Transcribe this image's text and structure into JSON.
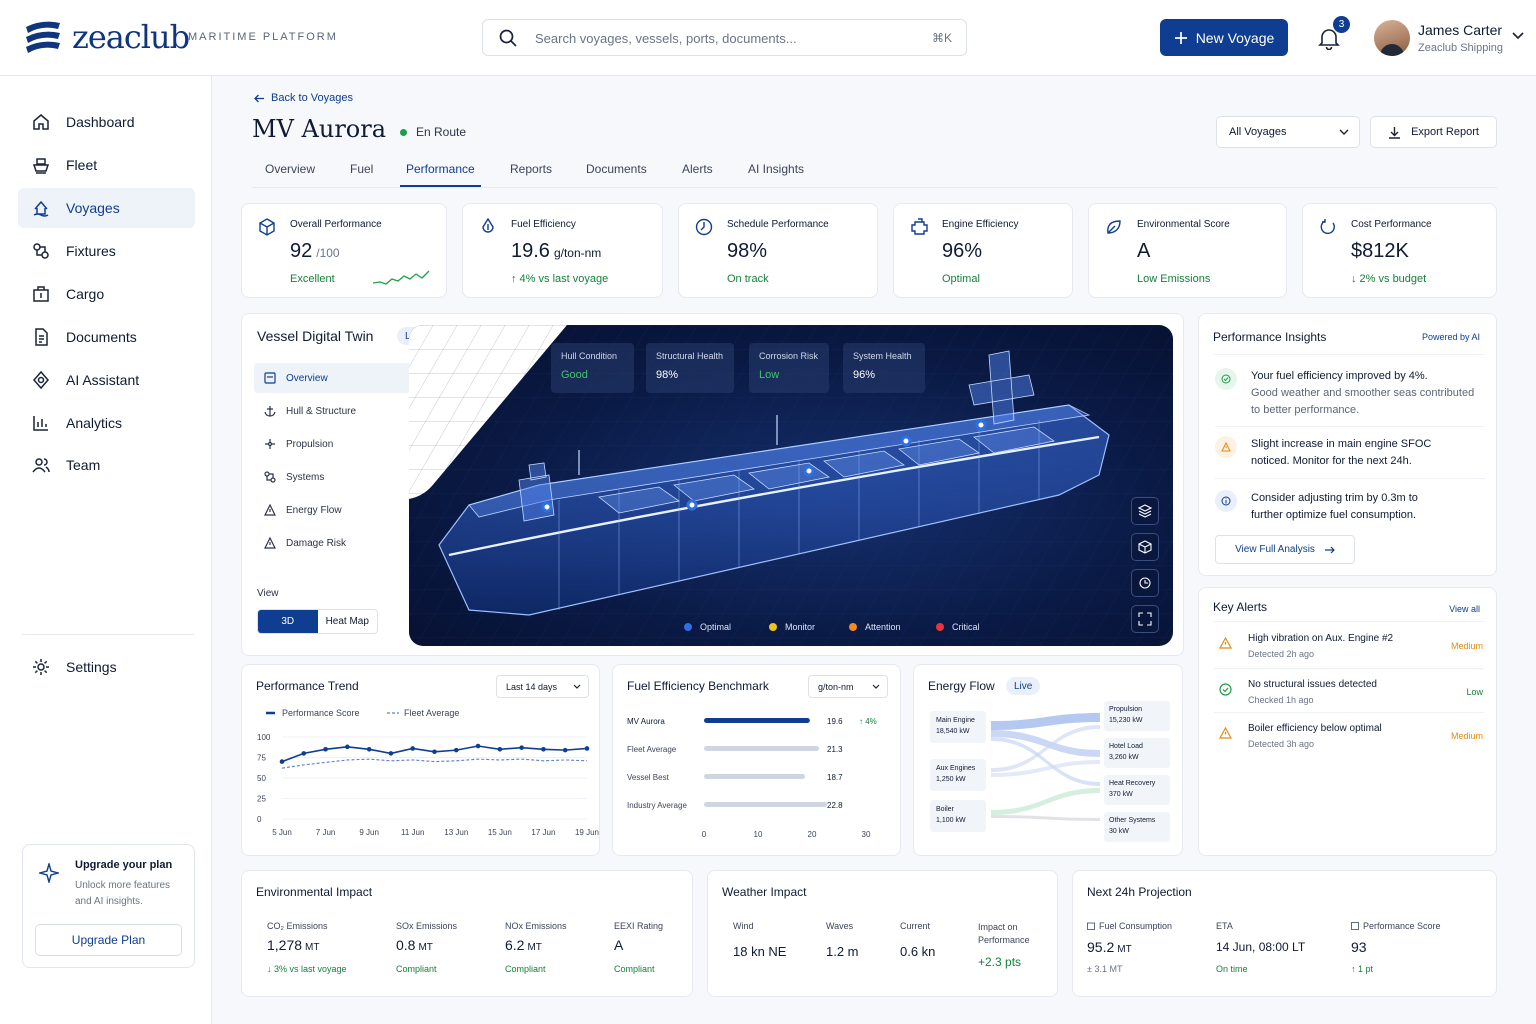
{
  "brand": {
    "name": "zeaclub",
    "tagline": "MARITIME PLATFORM"
  },
  "search": {
    "placeholder": "Search voyages, vessels, ports, documents...",
    "shortcut": "⌘K"
  },
  "header": {
    "new_voyage": "New Voyage",
    "notifications": "3",
    "user_name": "James Carter",
    "user_org": "Zeaclub Shipping"
  },
  "nav": {
    "items": [
      {
        "label": "Dashboard",
        "icon": "dashboard-icon"
      },
      {
        "label": "Fleet",
        "icon": "ship-icon"
      },
      {
        "label": "Voyages",
        "icon": "voyages-icon"
      },
      {
        "label": "Fixtures",
        "icon": "fixtures-icon"
      },
      {
        "label": "Cargo",
        "icon": "cargo-icon"
      },
      {
        "label": "Documents",
        "icon": "document-icon"
      },
      {
        "label": "AI Assistant",
        "icon": "ai-icon"
      },
      {
        "label": "Analytics",
        "icon": "analytics-icon"
      },
      {
        "label": "Team",
        "icon": "team-icon"
      }
    ],
    "settings": "Settings"
  },
  "upgrade": {
    "title": "Upgrade your plan",
    "desc": "Unlock more features and AI insights.",
    "button": "Upgrade Plan"
  },
  "page": {
    "back": "Back to Voyages",
    "title": "MV Aurora",
    "status": "En Route",
    "voyage_select": "All Voyages",
    "export": "Export Report"
  },
  "tabs": [
    "Overview",
    "Fuel",
    "Performance",
    "Reports",
    "Documents",
    "Alerts",
    "AI Insights"
  ],
  "kpis": [
    {
      "title": "Overall Performance",
      "value": "92",
      "unit": "/100",
      "sub": "Excellent"
    },
    {
      "title": "Fuel Efficiency",
      "value": "19.6",
      "unit": "g/ton-nm",
      "sub": "↑  4% vs last voyage"
    },
    {
      "title": "Schedule Performance",
      "value": "98%",
      "unit": "",
      "sub": "On track"
    },
    {
      "title": "Engine Efficiency",
      "value": "96%",
      "unit": "",
      "sub": "Optimal"
    },
    {
      "title": "Environmental Score",
      "value": "A",
      "unit": "",
      "sub": "Low Emissions"
    },
    {
      "title": "Cost Performance",
      "value": "$812K",
      "unit": "",
      "sub": "↓  2% vs budget"
    }
  ],
  "twin": {
    "title": "Vessel Digital Twin",
    "live": "Live",
    "menu": [
      "Overview",
      "Hull & Structure",
      "Propulsion",
      "Systems",
      "Energy Flow",
      "Damage Risk"
    ],
    "view_label": "View",
    "view_3d": "3D",
    "view_heat": "Heat Map",
    "stats": [
      {
        "label": "Hull Condition",
        "value": "Good"
      },
      {
        "label": "Structural Health",
        "value": "98%"
      },
      {
        "label": "Corrosion Risk",
        "value": "Low"
      },
      {
        "label": "System Health",
        "value": "96%"
      }
    ],
    "legend": [
      {
        "label": "Optimal",
        "color": "#2f6fe0"
      },
      {
        "label": "Monitor",
        "color": "#f1c21b"
      },
      {
        "label": "Attention",
        "color": "#f08a24"
      },
      {
        "label": "Critical",
        "color": "#e5363d"
      }
    ]
  },
  "insights": {
    "title": "Performance Insights",
    "powered": "Powered by AI",
    "items": [
      {
        "strong": "Your fuel efficiency improved by 4%.",
        "rest": "Good weather and smoother seas contributed to better performance."
      },
      {
        "strong": "Slight increase in main engine SFOC noticed. Monitor for the next 24h.",
        "rest": ""
      },
      {
        "strong": "Consider adjusting trim by 0.3m to further optimize fuel consumption.",
        "rest": ""
      }
    ],
    "button": "View Full Analysis"
  },
  "alerts": {
    "title": "Key Alerts",
    "view_all": "View all",
    "items": [
      {
        "title": "High vibration on Aux. Engine #2",
        "time": "Detected 2h ago",
        "level": "Medium"
      },
      {
        "title": "No structural issues detected",
        "time": "Checked 1h ago",
        "level": "Low"
      },
      {
        "title": "Boiler efficiency below optimal",
        "time": "Detected 3h ago",
        "level": "Medium"
      }
    ]
  },
  "trend": {
    "title": "Performance Trend",
    "range": "Last 14 days"
  },
  "benchmark": {
    "title": "Fuel Efficiency Benchmark",
    "unit": "g/ton-nm",
    "delta": "↑  4%"
  },
  "energy": {
    "title": "Energy Flow",
    "live": "Live",
    "sources": [
      {
        "name": "Main Engine",
        "value": "18,540 kW"
      },
      {
        "name": "Aux Engines",
        "value": "1,250 kW"
      },
      {
        "name": "Boiler",
        "value": "1,100 kW"
      }
    ],
    "sinks": [
      {
        "name": "Propulsion",
        "value": "15,230 kW"
      },
      {
        "name": "Hotel Load",
        "value": "3,260 kW"
      },
      {
        "name": "Heat Recovery",
        "value": "370 kW"
      },
      {
        "name": "Other Systems",
        "value": "30 kW"
      }
    ]
  },
  "environment": {
    "title": "Environmental Impact",
    "items": [
      {
        "label": "CO₂ Emissions",
        "value": "1,278",
        "unit": "MT",
        "sub": "↓  3% vs last voyage"
      },
      {
        "label": "SOx Emissions",
        "value": "0.8",
        "unit": "MT",
        "sub": "Compliant"
      },
      {
        "label": "NOx Emissions",
        "value": "6.2",
        "unit": "MT",
        "sub": "Compliant"
      },
      {
        "label": "EEXI Rating",
        "value": "A",
        "unit": "",
        "sub": "Compliant"
      }
    ]
  },
  "weather": {
    "title": "Weather Impact",
    "items": [
      {
        "label": "Wind",
        "value": "18 kn NE"
      },
      {
        "label": "Waves",
        "value": "1.2 m"
      },
      {
        "label": "Current",
        "value": "0.6 kn"
      }
    ],
    "impact_label": "Impact on Performance",
    "impact_value": "+2.3 pts"
  },
  "projection": {
    "title": "Next 24h Projection",
    "items": [
      {
        "label": "Fuel Consumption",
        "value": "95.2",
        "unit": "MT",
        "sub": "±  3.1 MT"
      },
      {
        "label": "ETA",
        "value": "14 Jun, 08:00 LT",
        "unit": "",
        "sub": "On time"
      },
      {
        "label": "Performance Score",
        "value": "93",
        "unit": "",
        "sub": "↑   1 pt"
      }
    ]
  },
  "chart_data": [
    {
      "type": "line",
      "title": "Performance Trend",
      "x": [
        "5 Jun",
        "6 Jun",
        "7 Jun",
        "8 Jun",
        "9 Jun",
        "10 Jun",
        "11 Jun",
        "12 Jun",
        "13 Jun",
        "14 Jun",
        "15 Jun",
        "16 Jun",
        "17 Jun",
        "18 Jun",
        "19 Jun"
      ],
      "xticks": [
        "5 Jun",
        "7 Jun",
        "9 Jun",
        "11 Jun",
        "13 Jun",
        "15 Jun",
        "17 Jun",
        "19 Jun"
      ],
      "series": [
        {
          "name": "Performance Score",
          "values": [
            70,
            80,
            85,
            88,
            85,
            80,
            86,
            82,
            84,
            89,
            85,
            87,
            85,
            84,
            86
          ]
        },
        {
          "name": "Fleet Average",
          "values": [
            62,
            66,
            69,
            72,
            73,
            71,
            72,
            70,
            71,
            73,
            72,
            73,
            71,
            72,
            71
          ]
        }
      ],
      "ylim": [
        0,
        100
      ],
      "yticks": [
        0,
        25,
        50,
        75,
        100
      ],
      "legend": "top-left"
    },
    {
      "type": "bar",
      "title": "Fuel Efficiency Benchmark",
      "categories": [
        "MV Aurora",
        "Fleet Average",
        "Vessel Best",
        "Industry Average"
      ],
      "values": [
        19.6,
        21.3,
        18.7,
        22.8
      ],
      "xlim": [
        0,
        30
      ],
      "xticks": [
        0,
        10,
        20,
        30
      ]
    }
  ]
}
